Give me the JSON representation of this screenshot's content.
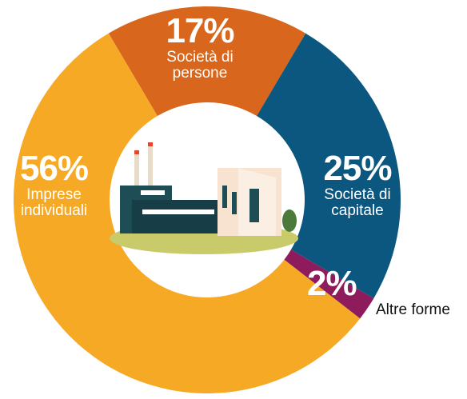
{
  "chart_data": {
    "type": "pie",
    "categories": [
      "Società di persone",
      "Società di capitale",
      "Altre forme",
      "Imprese individuali"
    ],
    "values": [
      17,
      25,
      2,
      56
    ],
    "value_labels": [
      "17%",
      "25%",
      "2%",
      "56%"
    ],
    "colors": [
      "#d8661d",
      "#0b5780",
      "#8e1b5c",
      "#f6a925"
    ]
  }
}
